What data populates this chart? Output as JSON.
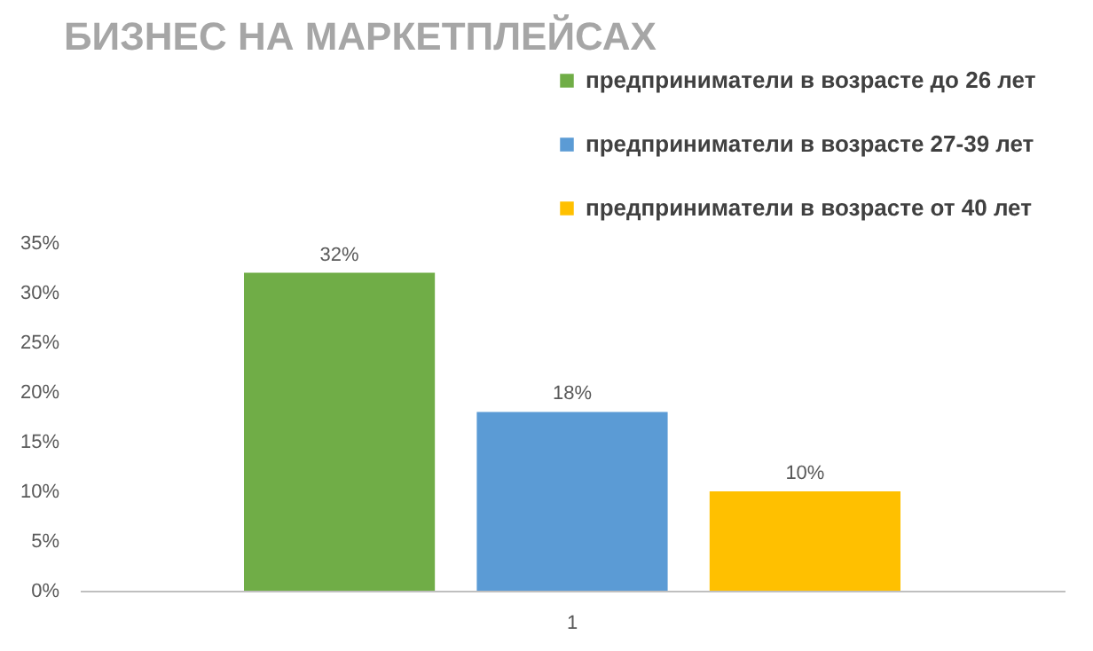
{
  "chart_data": {
    "type": "bar",
    "title": "БИЗНЕС НА МАРКЕТПЛЕЙСАХ",
    "categories": [
      "1"
    ],
    "series": [
      {
        "name": "предприниматели в возрасте до 26 лет",
        "color": "#70ad47",
        "values": [
          32
        ],
        "value_labels": [
          "32%"
        ]
      },
      {
        "name": "предприниматели в возрасте 27-39 лет",
        "color": "#5b9bd5",
        "values": [
          18
        ],
        "value_labels": [
          "18%"
        ]
      },
      {
        "name": "предприниматели в возрасте от 40 лет",
        "color": "#ffc000",
        "values": [
          10
        ],
        "value_labels": [
          "10%"
        ]
      }
    ],
    "ylim": [
      0,
      35
    ],
    "yticks": [
      {
        "value": 0,
        "label": "0%"
      },
      {
        "value": 5,
        "label": "5%"
      },
      {
        "value": 10,
        "label": "10%"
      },
      {
        "value": 15,
        "label": "15%"
      },
      {
        "value": 20,
        "label": "20%"
      },
      {
        "value": 25,
        "label": "25%"
      },
      {
        "value": 30,
        "label": "30%"
      },
      {
        "value": 35,
        "label": "35%"
      }
    ],
    "grid": false,
    "legend": "top right"
  }
}
